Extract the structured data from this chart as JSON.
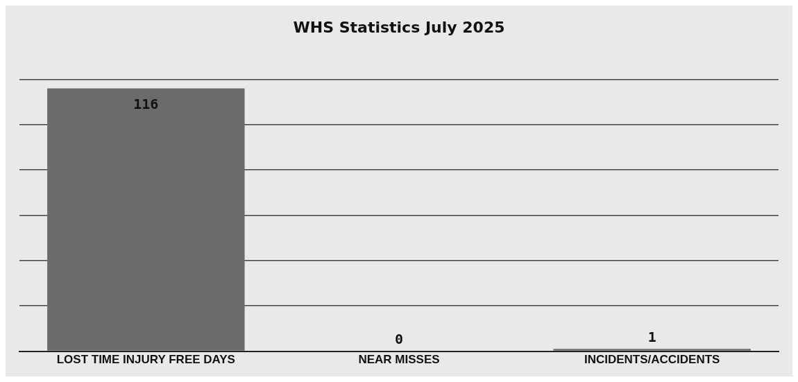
{
  "chart_data": {
    "type": "bar",
    "title": "WHS Statistics July 2025",
    "categories": [
      "LOST TIME INJURY FREE DAYS",
      "NEAR MISSES",
      "INCIDENTS/ACCIDENTS"
    ],
    "values": [
      116,
      0,
      1
    ],
    "color": "#6b6b6b",
    "tick_labels": "x",
    "grid": "y",
    "data_labels": true
  }
}
